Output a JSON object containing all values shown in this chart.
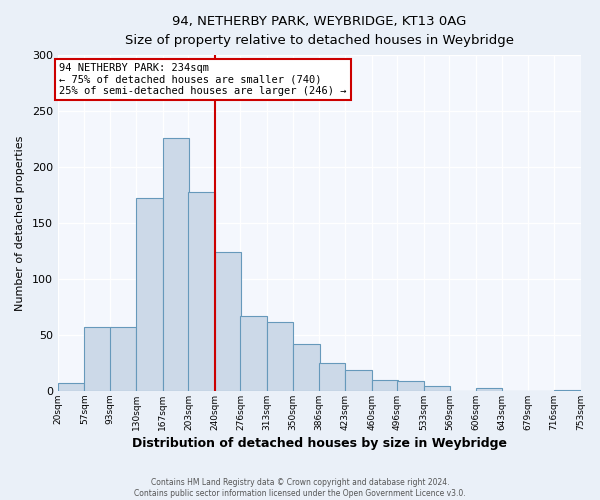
{
  "title": "94, NETHERBY PARK, WEYBRIDGE, KT13 0AG",
  "subtitle": "Size of property relative to detached houses in Weybridge",
  "xlabel": "Distribution of detached houses by size in Weybridge",
  "ylabel": "Number of detached properties",
  "bar_left_edges": [
    20,
    57,
    93,
    130,
    167,
    203,
    240,
    276,
    313,
    350,
    386,
    423,
    460,
    496,
    533,
    569,
    606,
    643,
    679,
    716
  ],
  "bar_heights": [
    7,
    57,
    57,
    172,
    226,
    178,
    124,
    67,
    62,
    42,
    25,
    19,
    10,
    9,
    4,
    0,
    3,
    0,
    0,
    1
  ],
  "bin_width": 37,
  "tick_labels": [
    "20sqm",
    "57sqm",
    "93sqm",
    "130sqm",
    "167sqm",
    "203sqm",
    "240sqm",
    "276sqm",
    "313sqm",
    "350sqm",
    "386sqm",
    "423sqm",
    "460sqm",
    "496sqm",
    "533sqm",
    "569sqm",
    "606sqm",
    "643sqm",
    "679sqm",
    "716sqm",
    "753sqm"
  ],
  "bar_color": "#ccd9e8",
  "bar_edge_color": "#6699bb",
  "vline_x": 240,
  "vline_color": "#cc0000",
  "annotation_line1": "94 NETHERBY PARK: 234sqm",
  "annotation_line2": "← 75% of detached houses are smaller (740)",
  "annotation_line3": "25% of semi-detached houses are larger (246) →",
  "annotation_box_color": "#ffffff",
  "annotation_box_edge": "#cc0000",
  "ylim": [
    0,
    300
  ],
  "yticks": [
    0,
    50,
    100,
    150,
    200,
    250,
    300
  ],
  "footer1": "Contains HM Land Registry data © Crown copyright and database right 2024.",
  "footer2": "Contains public sector information licensed under the Open Government Licence v3.0.",
  "background_color": "#eaf0f8",
  "plot_bg_color": "#f4f7fd"
}
